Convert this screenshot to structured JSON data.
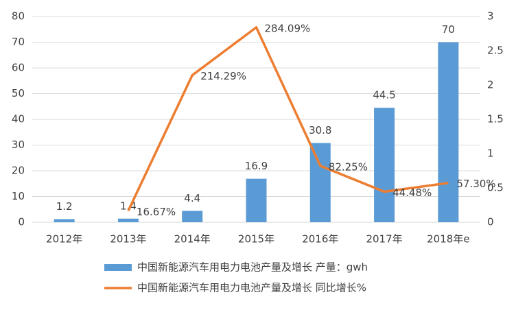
{
  "chart_data": {
    "type": "bar_line",
    "categories": [
      "2012年",
      "2013年",
      "2014年",
      "2015年",
      "2016年",
      "2017年",
      "2018年e"
    ],
    "series": [
      {
        "name": "中国新能源汽车用电力电池产量及增长 产量：gwh",
        "type": "bar",
        "color": "#5b9bd5",
        "values": [
          1.2,
          1.4,
          4.4,
          16.9,
          30.8,
          44.5,
          70
        ]
      },
      {
        "name": "中国新能源汽车用电力电池产量及增长 同比增长%",
        "type": "line",
        "axis": "y2",
        "color": "#ed7d31",
        "values": [
          null,
          0.1667,
          2.1429,
          2.8409,
          0.8225,
          0.4448,
          0.573
        ],
        "value_labels": [
          null,
          "16.67%",
          "214.29%",
          "284.09%",
          "82.25%",
          "44.48%",
          "57.30%"
        ]
      }
    ],
    "ylim": [
      0,
      80
    ],
    "yticks": [
      0,
      10,
      20,
      30,
      40,
      50,
      60,
      70,
      80
    ],
    "y2lim": [
      0,
      3
    ],
    "y2ticks": [
      0,
      0.5,
      1,
      1.5,
      2,
      2.5,
      3
    ],
    "grid": true,
    "legend": "bottom"
  }
}
